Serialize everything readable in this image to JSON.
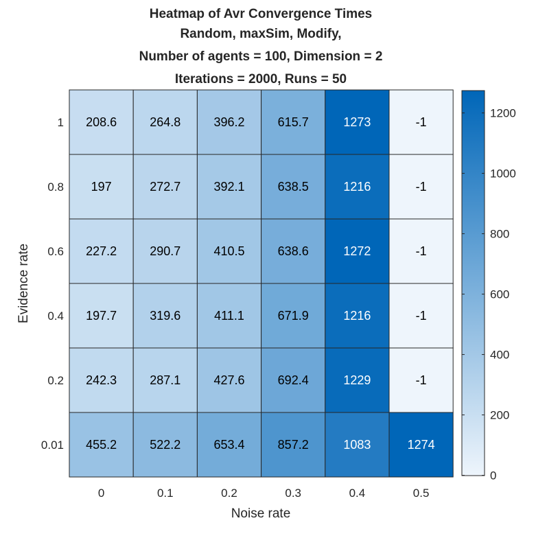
{
  "chart_data": {
    "type": "heatmap",
    "title_lines": [
      "Heatmap of Avr Convergence Times",
      "Random, maxSim, Modify,",
      "Number of agents = 100, Dimension = 2",
      "Iterations = 2000, Runs = 50"
    ],
    "xlabel": "Noise rate",
    "ylabel": "Evidence rate",
    "x_categories": [
      "0",
      "0.1",
      "0.2",
      "0.3",
      "0.4",
      "0.5"
    ],
    "y_categories": [
      "1",
      "0.8",
      "0.6",
      "0.4",
      "0.2",
      "0.01"
    ],
    "values": [
      [
        208.6,
        264.8,
        396.2,
        615.7,
        1273,
        -1
      ],
      [
        197,
        272.7,
        392.1,
        638.5,
        1216,
        -1
      ],
      [
        227.2,
        290.7,
        410.5,
        638.6,
        1272,
        -1
      ],
      [
        197.7,
        319.6,
        411.1,
        671.9,
        1216,
        -1
      ],
      [
        242.3,
        287.1,
        427.6,
        692.4,
        1229,
        -1
      ],
      [
        455.2,
        522.2,
        653.4,
        857.2,
        1083,
        1274
      ]
    ],
    "colorbar": {
      "min": -1,
      "max": 1274,
      "ticks": [
        0,
        200,
        400,
        600,
        800,
        1000,
        1200
      ],
      "colors": {
        "low": "#eef5fc",
        "high": "#0066b8"
      }
    },
    "text_color_threshold": 1000,
    "text_colors": {
      "dark": "#000000",
      "light": "#ffffff"
    },
    "grid_color": "#262626"
  }
}
